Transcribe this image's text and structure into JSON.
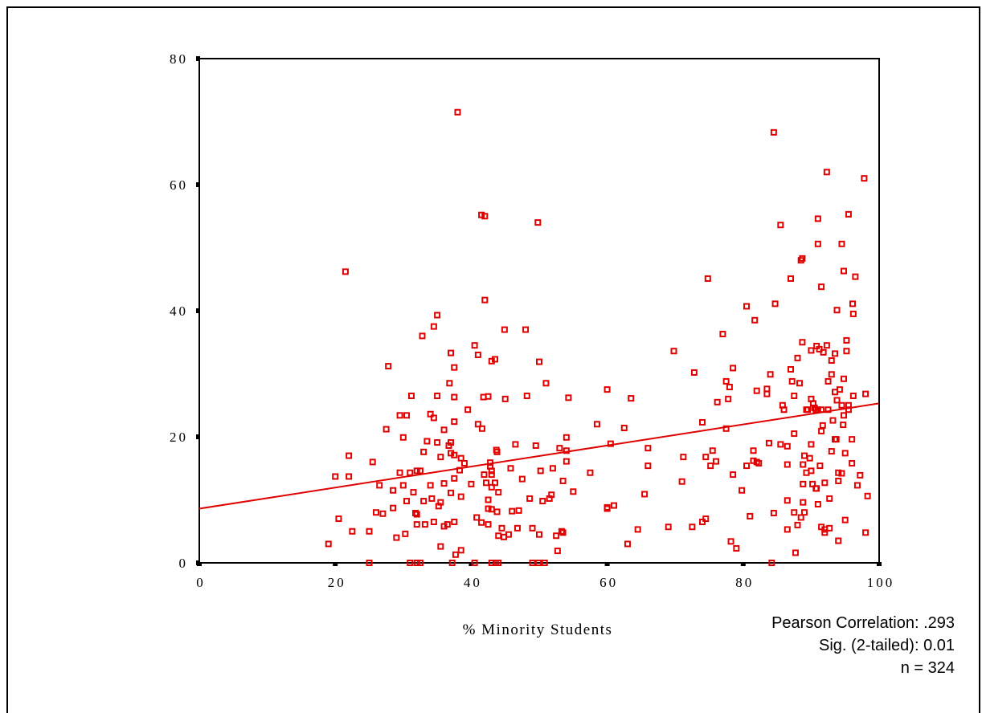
{
  "chart_data": {
    "type": "scatter",
    "title": "",
    "xlabel": "% Minority Students",
    "ylabel": "",
    "xlim": [
      0,
      100
    ],
    "ylim": [
      0,
      80
    ],
    "x_ticks": [
      "0",
      "20",
      "40",
      "60",
      "80",
      "100"
    ],
    "y_ticks": [
      "0",
      "20",
      "40",
      "60",
      "80"
    ],
    "grid": false,
    "legend": "none",
    "marker": "hollow-square",
    "color": "#e00000",
    "fit_line": {
      "intercept": 8.6,
      "slope": 0.167,
      "x_range": [
        0,
        100
      ]
    },
    "stats_annotation": [
      "Pearson Correlation: .293",
      "Sig. (2-tailed): 0.01",
      "n = 324"
    ],
    "points": [
      [
        19,
        3
      ],
      [
        20,
        13.7
      ],
      [
        20.5,
        7
      ],
      [
        21.5,
        46.2
      ],
      [
        22,
        17
      ],
      [
        22,
        13.7
      ],
      [
        22.5,
        5
      ],
      [
        25,
        5
      ],
      [
        25,
        0
      ],
      [
        25.5,
        16
      ],
      [
        26,
        8
      ],
      [
        26.5,
        12.3
      ],
      [
        27,
        7.8
      ],
      [
        27.5,
        21.2
      ],
      [
        27.8,
        31.2
      ],
      [
        28.5,
        8.7
      ],
      [
        28.5,
        11.5
      ],
      [
        29,
        4
      ],
      [
        29.5,
        14.3
      ],
      [
        29.5,
        23.4
      ],
      [
        30,
        12.3
      ],
      [
        30,
        19.9
      ],
      [
        30.3,
        4.6
      ],
      [
        30.5,
        23.4
      ],
      [
        30.5,
        9.8
      ],
      [
        31,
        14.3
      ],
      [
        31,
        0
      ],
      [
        31.2,
        26.5
      ],
      [
        31.5,
        11.2
      ],
      [
        31.8,
        7.9
      ],
      [
        32,
        6.1
      ],
      [
        32,
        7.7
      ],
      [
        32,
        14.6
      ],
      [
        32,
        0
      ],
      [
        32.5,
        14.6
      ],
      [
        32.5,
        0
      ],
      [
        32.8,
        36
      ],
      [
        33,
        17.6
      ],
      [
        33,
        9.8
      ],
      [
        33.2,
        6.1
      ],
      [
        33.5,
        19.3
      ],
      [
        34,
        12.3
      ],
      [
        34,
        23.6
      ],
      [
        34.2,
        10.2
      ],
      [
        34.5,
        23
      ],
      [
        34.5,
        37.5
      ],
      [
        34.5,
        6.5
      ],
      [
        35,
        19.1
      ],
      [
        35,
        26.5
      ],
      [
        35,
        39.3
      ],
      [
        35.2,
        9
      ],
      [
        35.5,
        2.6
      ],
      [
        35.5,
        9.6
      ],
      [
        35.5,
        16.8
      ],
      [
        36,
        5.8
      ],
      [
        36,
        12.6
      ],
      [
        36,
        21.1
      ],
      [
        36.5,
        6.1
      ],
      [
        36.7,
        18.6
      ],
      [
        36.8,
        28.5
      ],
      [
        37,
        19.1
      ],
      [
        37,
        17.4
      ],
      [
        37,
        11.1
      ],
      [
        37,
        33.3
      ],
      [
        37.2,
        0
      ],
      [
        37.5,
        13.4
      ],
      [
        37.5,
        17.1
      ],
      [
        37.5,
        31
      ],
      [
        37.5,
        26.3
      ],
      [
        37.5,
        22.4
      ],
      [
        37.5,
        6.5
      ],
      [
        37.7,
        1.3
      ],
      [
        38,
        71.5
      ],
      [
        38.3,
        14.7
      ],
      [
        38.5,
        2
      ],
      [
        38.5,
        10.5
      ],
      [
        38.5,
        16.6
      ],
      [
        39,
        15.8
      ],
      [
        39.5,
        24.3
      ],
      [
        40,
        12.5
      ],
      [
        40.5,
        0
      ],
      [
        40.5,
        34.5
      ],
      [
        40.8,
        7.2
      ],
      [
        41,
        22
      ],
      [
        41,
        33
      ],
      [
        41.5,
        55.2
      ],
      [
        41.5,
        6.4
      ],
      [
        41.6,
        21.3
      ],
      [
        41.8,
        26.3
      ],
      [
        41.9,
        14
      ],
      [
        42,
        55
      ],
      [
        42,
        41.7
      ],
      [
        42.2,
        12.7
      ],
      [
        42.5,
        8.6
      ],
      [
        42.5,
        10
      ],
      [
        42.5,
        26.4
      ],
      [
        42.5,
        6.1
      ],
      [
        42.8,
        15.9
      ],
      [
        42.8,
        15.3
      ],
      [
        43,
        14.6
      ],
      [
        43,
        14
      ],
      [
        43,
        12
      ],
      [
        43,
        8.5
      ],
      [
        43,
        32
      ],
      [
        43,
        0
      ],
      [
        43.5,
        32.3
      ],
      [
        43.5,
        12.7
      ],
      [
        43.6,
        0
      ],
      [
        43.7,
        17.9
      ],
      [
        43.8,
        17.6
      ],
      [
        43.8,
        8.1
      ],
      [
        44,
        4.3
      ],
      [
        44,
        0
      ],
      [
        44,
        11.2
      ],
      [
        44.5,
        5.5
      ],
      [
        44.8,
        4.1
      ],
      [
        44.9,
        37
      ],
      [
        45,
        26
      ],
      [
        45.5,
        4.5
      ],
      [
        45.8,
        15
      ],
      [
        46,
        8.2
      ],
      [
        46.5,
        18.8
      ],
      [
        46.8,
        5.5
      ],
      [
        47,
        8.3
      ],
      [
        47.5,
        13.3
      ],
      [
        48,
        37
      ],
      [
        48.2,
        26.5
      ],
      [
        48.6,
        10.2
      ],
      [
        49,
        5.5
      ],
      [
        49,
        0
      ],
      [
        49.5,
        18.6
      ],
      [
        49.8,
        54
      ],
      [
        49.9,
        0
      ],
      [
        50,
        31.9
      ],
      [
        50,
        4.5
      ],
      [
        50.2,
        14.6
      ],
      [
        50.5,
        9.8
      ],
      [
        50.8,
        0
      ],
      [
        51,
        28.5
      ],
      [
        51.5,
        10.2
      ],
      [
        51.8,
        10.8
      ],
      [
        52,
        15
      ],
      [
        52.5,
        4.3
      ],
      [
        52.7,
        1.9
      ],
      [
        53,
        18.2
      ],
      [
        53.3,
        5
      ],
      [
        53.5,
        4.8
      ],
      [
        53.5,
        13
      ],
      [
        54,
        17.8
      ],
      [
        54,
        16.1
      ],
      [
        54,
        19.9
      ],
      [
        54.3,
        26.2
      ],
      [
        55,
        11.3
      ],
      [
        57.5,
        14.3
      ],
      [
        58.5,
        22
      ],
      [
        60,
        8.8
      ],
      [
        60,
        8.6
      ],
      [
        60,
        27.5
      ],
      [
        60.5,
        18.9
      ],
      [
        61,
        9.1
      ],
      [
        62.5,
        21.4
      ],
      [
        63,
        3
      ],
      [
        63.5,
        26.1
      ],
      [
        64.5,
        5.3
      ],
      [
        65.5,
        10.9
      ],
      [
        66,
        18.2
      ],
      [
        66,
        15.4
      ],
      [
        69,
        5.7
      ],
      [
        69.8,
        33.6
      ],
      [
        71,
        12.9
      ],
      [
        71.2,
        16.8
      ],
      [
        72.5,
        5.7
      ],
      [
        72.8,
        30.2
      ],
      [
        74,
        6.5
      ],
      [
        74,
        22.3
      ],
      [
        74.5,
        16.8
      ],
      [
        74.5,
        7
      ],
      [
        74.8,
        45.1
      ],
      [
        75.2,
        15.4
      ],
      [
        75.5,
        17.8
      ],
      [
        76,
        16.1
      ],
      [
        76.2,
        25.5
      ],
      [
        77,
        36.3
      ],
      [
        77.5,
        28.8
      ],
      [
        77.5,
        21.3
      ],
      [
        77.8,
        26
      ],
      [
        78,
        27.9
      ],
      [
        78.2,
        3.4
      ],
      [
        78.5,
        30.9
      ],
      [
        78.5,
        14
      ],
      [
        79,
        2.3
      ],
      [
        79.8,
        11.5
      ],
      [
        80.5,
        40.7
      ],
      [
        80.5,
        15.4
      ],
      [
        81,
        7.4
      ],
      [
        81.5,
        17.8
      ],
      [
        81.5,
        16.2
      ],
      [
        81.7,
        38.5
      ],
      [
        82,
        16
      ],
      [
        82,
        27.3
      ],
      [
        82.3,
        15.8
      ],
      [
        83.5,
        26.8
      ],
      [
        83.5,
        27.6
      ],
      [
        83.8,
        19
      ],
      [
        84,
        29.9
      ],
      [
        84.2,
        0
      ],
      [
        84.5,
        68.3
      ],
      [
        84.5,
        7.9
      ],
      [
        84.7,
        41.1
      ],
      [
        85.5,
        18.8
      ],
      [
        85.5,
        53.6
      ],
      [
        85.8,
        25
      ],
      [
        86,
        24.3
      ],
      [
        86.5,
        18.5
      ],
      [
        86.5,
        15.6
      ],
      [
        86.5,
        9.9
      ],
      [
        86.5,
        5.3
      ],
      [
        87,
        45.1
      ],
      [
        87,
        30.7
      ],
      [
        87.2,
        28.8
      ],
      [
        87.5,
        20.5
      ],
      [
        87.5,
        26.5
      ],
      [
        87.5,
        8
      ],
      [
        87.7,
        1.6
      ],
      [
        88,
        32.5
      ],
      [
        88,
        6
      ],
      [
        88.3,
        28.5
      ],
      [
        88.5,
        7.2
      ],
      [
        88.5,
        48
      ],
      [
        88.7,
        48.3
      ],
      [
        88.7,
        35
      ],
      [
        88.8,
        12.5
      ],
      [
        88.8,
        15.6
      ],
      [
        88.8,
        9.6
      ],
      [
        89,
        17
      ],
      [
        89,
        8
      ],
      [
        89.3,
        14.3
      ],
      [
        89.3,
        24.3
      ],
      [
        89.5,
        24.3
      ],
      [
        89.8,
        16.6
      ],
      [
        90,
        33.7
      ],
      [
        90,
        26
      ],
      [
        90,
        14.6
      ],
      [
        90,
        18.8
      ],
      [
        90.2,
        12.5
      ],
      [
        90.3,
        25.3
      ],
      [
        90.5,
        24.6
      ],
      [
        90.7,
        11.8
      ],
      [
        90.7,
        24.3
      ],
      [
        90.8,
        11.8
      ],
      [
        90.8,
        34.4
      ],
      [
        91,
        24.3
      ],
      [
        91,
        54.6
      ],
      [
        91,
        50.6
      ],
      [
        91,
        9.3
      ],
      [
        91.2,
        33.9
      ],
      [
        91.3,
        15.4
      ],
      [
        91.5,
        20.9
      ],
      [
        91.5,
        24.3
      ],
      [
        91.5,
        5.7
      ],
      [
        91.5,
        43.8
      ],
      [
        91.7,
        21.8
      ],
      [
        91.8,
        33.4
      ],
      [
        92,
        5.3
      ],
      [
        92,
        4.8
      ],
      [
        92,
        12.7
      ],
      [
        92.3,
        62
      ],
      [
        92.3,
        34.5
      ],
      [
        92.5,
        24.3
      ],
      [
        92.5,
        28.8
      ],
      [
        92.7,
        5.5
      ],
      [
        92.7,
        10.2
      ],
      [
        93,
        32.1
      ],
      [
        93,
        29.9
      ],
      [
        93,
        17.7
      ],
      [
        93.2,
        22.6
      ],
      [
        93.5,
        19.6
      ],
      [
        93.5,
        27.1
      ],
      [
        93.5,
        33.2
      ],
      [
        93.7,
        19.6
      ],
      [
        93.8,
        25.8
      ],
      [
        93.8,
        40.1
      ],
      [
        94,
        14.3
      ],
      [
        94,
        3.5
      ],
      [
        94,
        13
      ],
      [
        94.2,
        27.5
      ],
      [
        94.5,
        25
      ],
      [
        94.5,
        14.2
      ],
      [
        94.5,
        50.6
      ],
      [
        94.7,
        21.9
      ],
      [
        94.8,
        46.3
      ],
      [
        94.8,
        29.2
      ],
      [
        94.8,
        23.4
      ],
      [
        95,
        17.4
      ],
      [
        95,
        6.8
      ],
      [
        95.2,
        35.3
      ],
      [
        95.2,
        33.6
      ],
      [
        95.5,
        55.3
      ],
      [
        95.5,
        24.3
      ],
      [
        95.5,
        25
      ],
      [
        96,
        15.8
      ],
      [
        96,
        19.6
      ],
      [
        96.1,
        41.1
      ],
      [
        96.2,
        39.5
      ],
      [
        96.2,
        26.5
      ],
      [
        96.5,
        45.4
      ],
      [
        96.8,
        12.3
      ],
      [
        97.2,
        13.9
      ],
      [
        97.8,
        61
      ],
      [
        98,
        26.8
      ],
      [
        98,
        4.8
      ],
      [
        98.3,
        10.6
      ]
    ]
  }
}
